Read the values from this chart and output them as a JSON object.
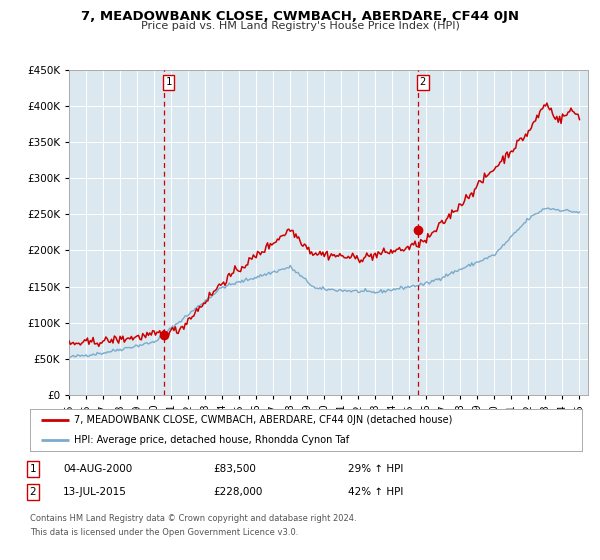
{
  "title": "7, MEADOWBANK CLOSE, CWMBACH, ABERDARE, CF44 0JN",
  "subtitle": "Price paid vs. HM Land Registry's House Price Index (HPI)",
  "ylim": [
    0,
    450000
  ],
  "yticks": [
    0,
    50000,
    100000,
    150000,
    200000,
    250000,
    300000,
    350000,
    400000,
    450000
  ],
  "ytick_labels": [
    "£0",
    "£50K",
    "£100K",
    "£150K",
    "£200K",
    "£250K",
    "£300K",
    "£350K",
    "£400K",
    "£450K"
  ],
  "xlim_start": 1995.0,
  "xlim_end": 2025.5,
  "xtick_years": [
    1995,
    1996,
    1997,
    1998,
    1999,
    2000,
    2001,
    2002,
    2003,
    2004,
    2005,
    2006,
    2007,
    2008,
    2009,
    2010,
    2011,
    2012,
    2013,
    2014,
    2015,
    2016,
    2017,
    2018,
    2019,
    2020,
    2021,
    2022,
    2023,
    2024,
    2025
  ],
  "red_line_color": "#cc0000",
  "blue_line_color": "#7aabcc",
  "plot_bg_color": "#dce8f0",
  "grid_color": "#ffffff",
  "marker1_x": 2000.58,
  "marker1_y": 83500,
  "marker2_x": 2015.53,
  "marker2_y": 228000,
  "vline1_x": 2000.58,
  "vline2_x": 2015.53,
  "legend_label_red": "7, MEADOWBANK CLOSE, CWMBACH, ABERDARE, CF44 0JN (detached house)",
  "legend_label_blue": "HPI: Average price, detached house, Rhondda Cynon Taf",
  "footnote1": "Contains HM Land Registry data © Crown copyright and database right 2024.",
  "footnote2": "This data is licensed under the Open Government Licence v3.0.",
  "table_row1_date": "04-AUG-2000",
  "table_row1_price": "£83,500",
  "table_row1_hpi": "29% ↑ HPI",
  "table_row2_date": "13-JUL-2015",
  "table_row2_price": "£228,000",
  "table_row2_hpi": "42% ↑ HPI"
}
